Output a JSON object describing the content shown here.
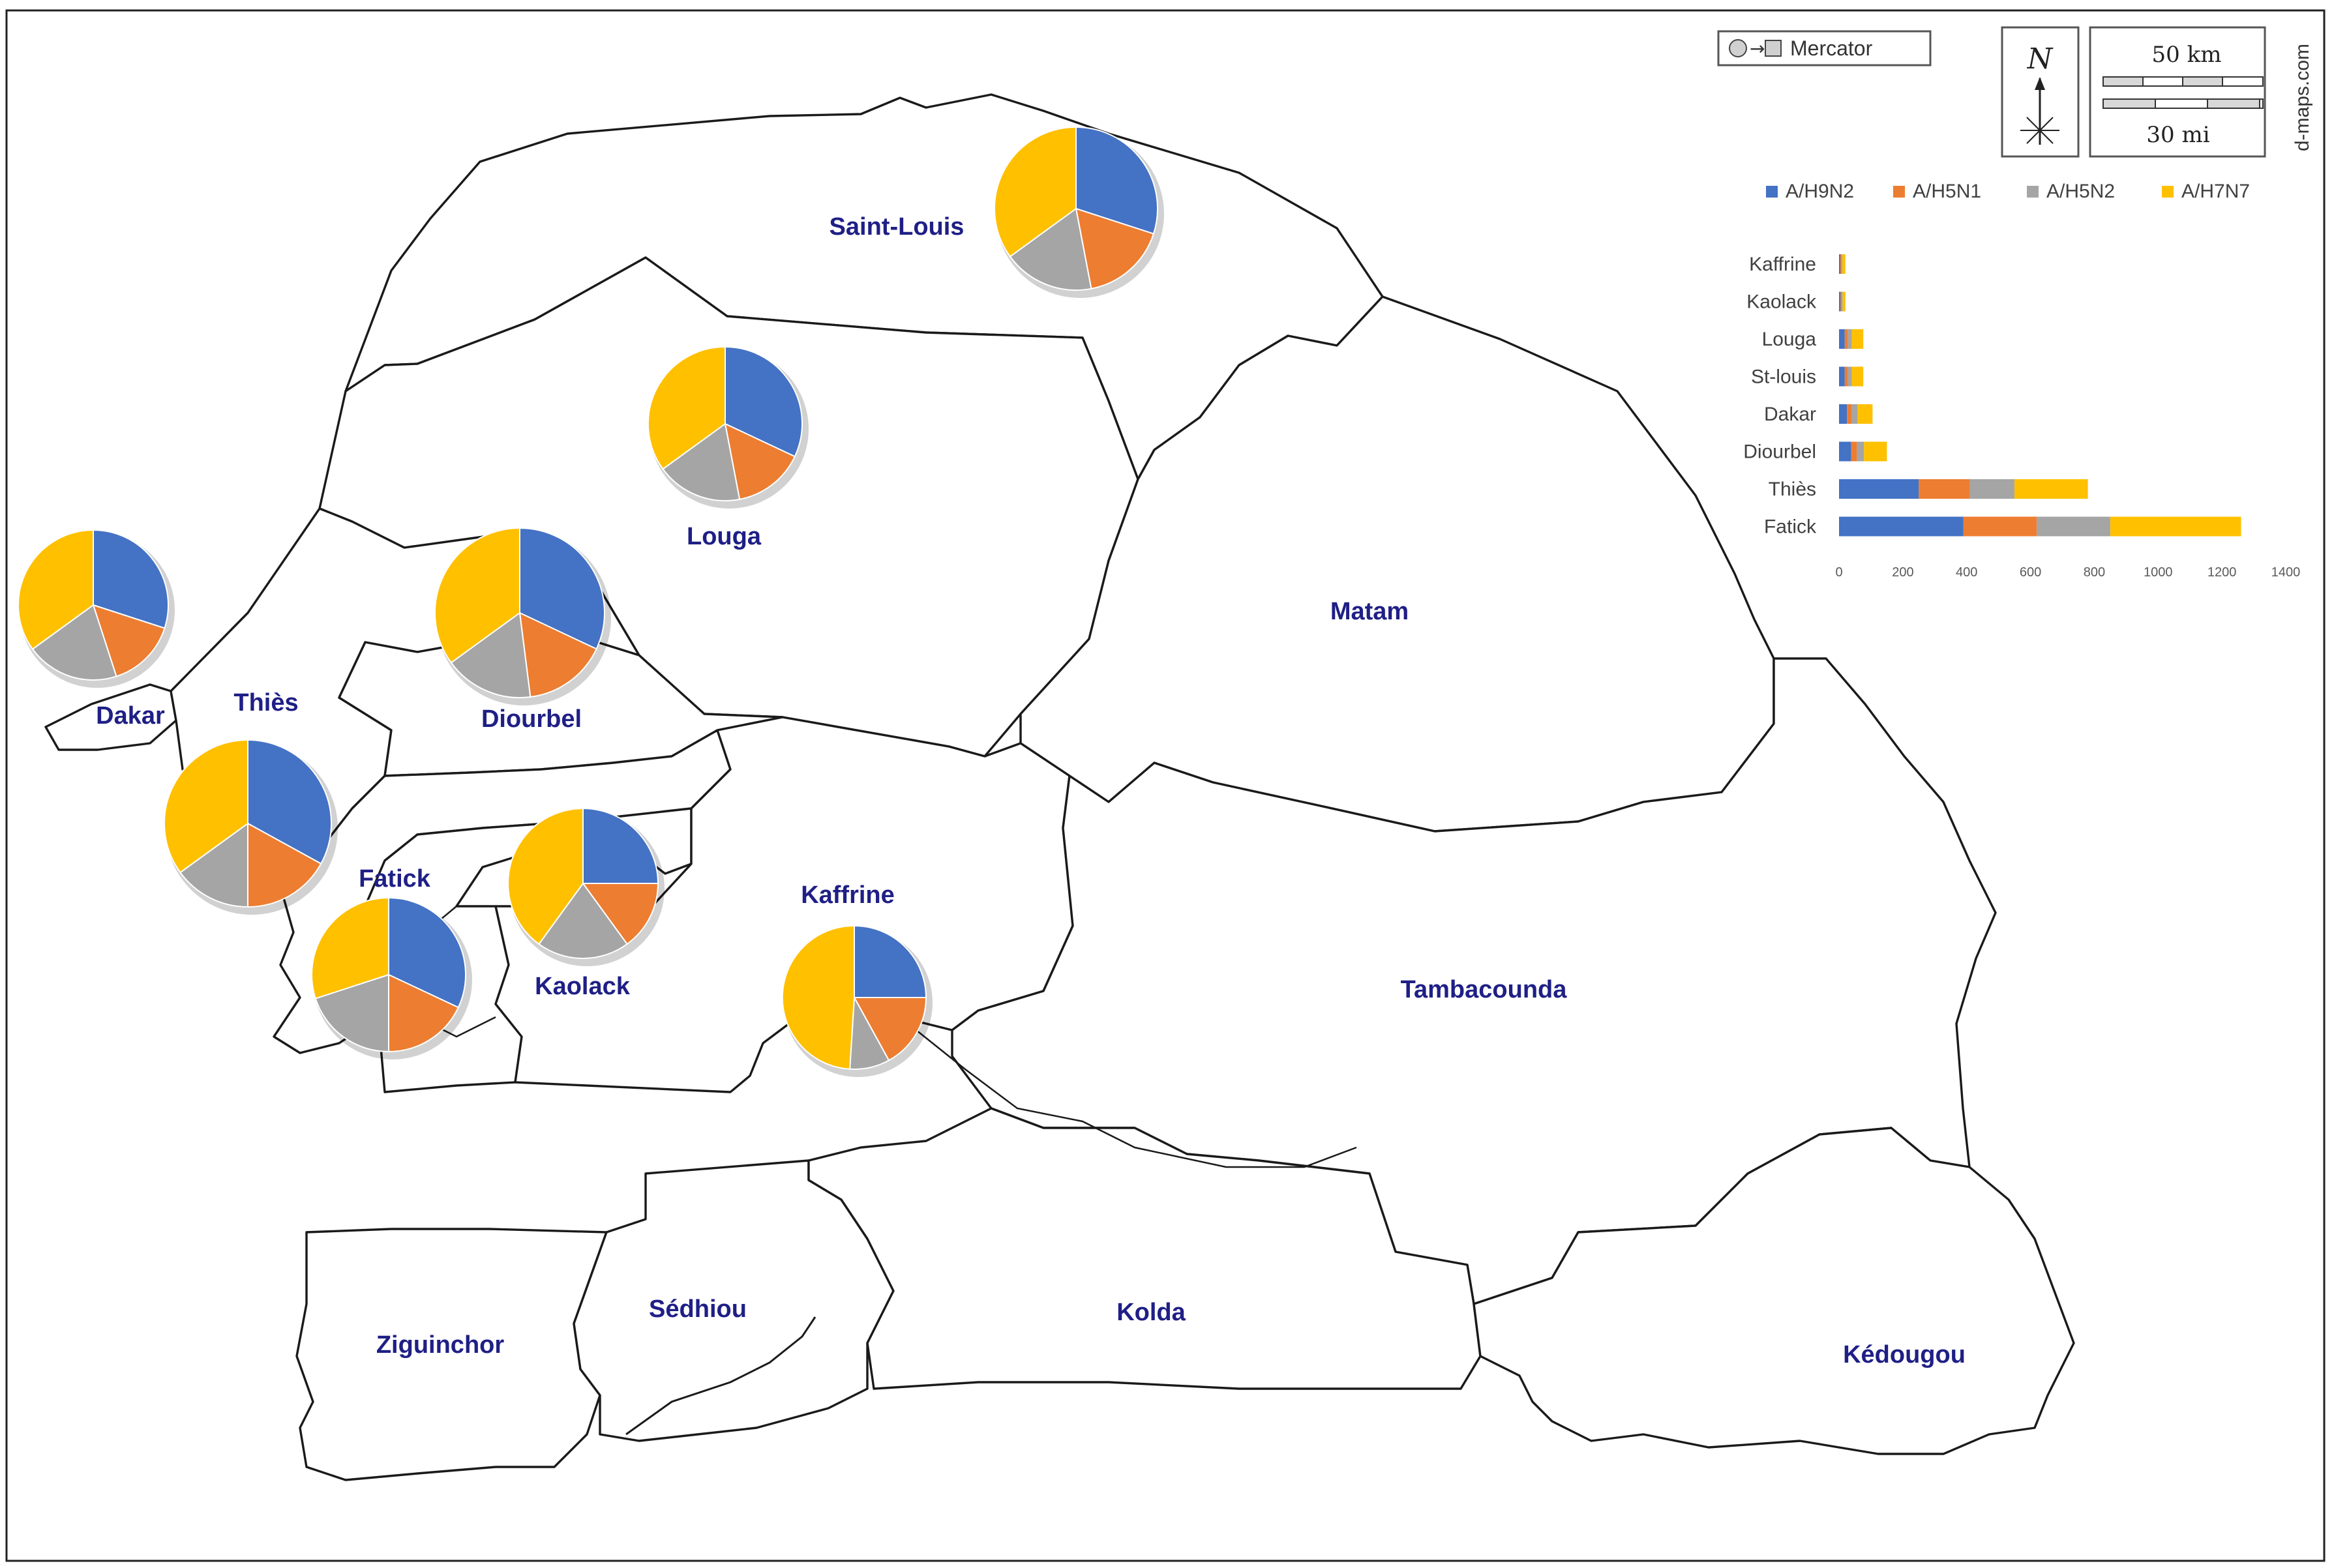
{
  "map": {
    "credit": "d-maps.com",
    "projection_label": "Mercator",
    "north_label": "N",
    "scale_km": "50 km",
    "scale_mi": "30 mi",
    "colors": {
      "A/H9N2": "#4472c4",
      "A/H5N1": "#ed7d31",
      "A/H5N2": "#a5a5a5",
      "A/H7N7": "#ffc000"
    },
    "regions": [
      {
        "id": "saint-louis",
        "label": "Saint-Louis"
      },
      {
        "id": "louga",
        "label": "Louga"
      },
      {
        "id": "matam",
        "label": "Matam"
      },
      {
        "id": "dakar",
        "label": "Dakar"
      },
      {
        "id": "thies",
        "label": "Thiès"
      },
      {
        "id": "diourbel",
        "label": "Diourbel"
      },
      {
        "id": "fatick",
        "label": "Fatick"
      },
      {
        "id": "kaolack",
        "label": "Kaolack"
      },
      {
        "id": "kaffrine",
        "label": "Kaffrine"
      },
      {
        "id": "tambacounda",
        "label": "Tambacounda"
      },
      {
        "id": "ziguinchor",
        "label": "Ziguinchor"
      },
      {
        "id": "sedhiou",
        "label": "Sédhiou"
      },
      {
        "id": "kolda",
        "label": "Kolda"
      },
      {
        "id": "kedougou",
        "label": "Kédougou"
      }
    ]
  },
  "chart_data": [
    {
      "type": "pie",
      "label": "Saint-Louis",
      "slices": [
        {
          "name": "A/H9N2",
          "value": 30
        },
        {
          "name": "A/H5N1",
          "value": 17
        },
        {
          "name": "A/H5N2",
          "value": 18
        },
        {
          "name": "A/H7N7",
          "value": 35
        }
      ]
    },
    {
      "type": "pie",
      "label": "Louga",
      "slices": [
        {
          "name": "A/H9N2",
          "value": 32
        },
        {
          "name": "A/H5N1",
          "value": 15
        },
        {
          "name": "A/H5N2",
          "value": 18
        },
        {
          "name": "A/H7N7",
          "value": 35
        }
      ]
    },
    {
      "type": "pie",
      "label": "Dakar",
      "slices": [
        {
          "name": "A/H9N2",
          "value": 30
        },
        {
          "name": "A/H5N1",
          "value": 15
        },
        {
          "name": "A/H5N2",
          "value": 20
        },
        {
          "name": "A/H7N7",
          "value": 35
        }
      ]
    },
    {
      "type": "pie",
      "label": "Diourbel",
      "slices": [
        {
          "name": "A/H9N2",
          "value": 32
        },
        {
          "name": "A/H5N1",
          "value": 16
        },
        {
          "name": "A/H5N2",
          "value": 17
        },
        {
          "name": "A/H7N7",
          "value": 35
        }
      ]
    },
    {
      "type": "pie",
      "label": "Thiès",
      "slices": [
        {
          "name": "A/H9N2",
          "value": 33
        },
        {
          "name": "A/H5N1",
          "value": 17
        },
        {
          "name": "A/H5N2",
          "value": 15
        },
        {
          "name": "A/H7N7",
          "value": 35
        }
      ]
    },
    {
      "type": "pie",
      "label": "Kaolack",
      "slices": [
        {
          "name": "A/H9N2",
          "value": 25
        },
        {
          "name": "A/H5N1",
          "value": 15
        },
        {
          "name": "A/H5N2",
          "value": 20
        },
        {
          "name": "A/H7N7",
          "value": 40
        }
      ]
    },
    {
      "type": "pie",
      "label": "Fatick",
      "slices": [
        {
          "name": "A/H9N2",
          "value": 32
        },
        {
          "name": "A/H5N1",
          "value": 18
        },
        {
          "name": "A/H5N2",
          "value": 20
        },
        {
          "name": "A/H7N7",
          "value": 30
        }
      ]
    },
    {
      "type": "pie",
      "label": "Kaffrine",
      "slices": [
        {
          "name": "A/H9N2",
          "value": 25
        },
        {
          "name": "A/H5N1",
          "value": 17
        },
        {
          "name": "A/H5N2",
          "value": 9
        },
        {
          "name": "A/H7N7",
          "value": 49
        }
      ]
    },
    {
      "type": "bar",
      "orientation": "horizontal",
      "stacked": true,
      "categories": [
        "Kaffrine",
        "Kaolack",
        "Louga",
        "St-louis",
        "Dakar",
        "Diourbel",
        "Thiès",
        "Fatick"
      ],
      "series": [
        {
          "name": "A/H9N2",
          "values": [
            4,
            5,
            18,
            18,
            25,
            38,
            250,
            390
          ]
        },
        {
          "name": "A/H5N1",
          "values": [
            3,
            3,
            10,
            10,
            15,
            18,
            160,
            230
          ]
        },
        {
          "name": "A/H5N2",
          "values": [
            3,
            3,
            12,
            12,
            18,
            22,
            140,
            230
          ]
        },
        {
          "name": "A/H7N7",
          "values": [
            10,
            9,
            36,
            36,
            47,
            72,
            230,
            410
          ]
        }
      ],
      "xlim": [
        0,
        1400
      ],
      "xticks": [
        "0",
        "200",
        "400",
        "600",
        "800",
        "1000",
        "1200",
        "1400"
      ],
      "legend_position": "top",
      "grid": false
    }
  ]
}
